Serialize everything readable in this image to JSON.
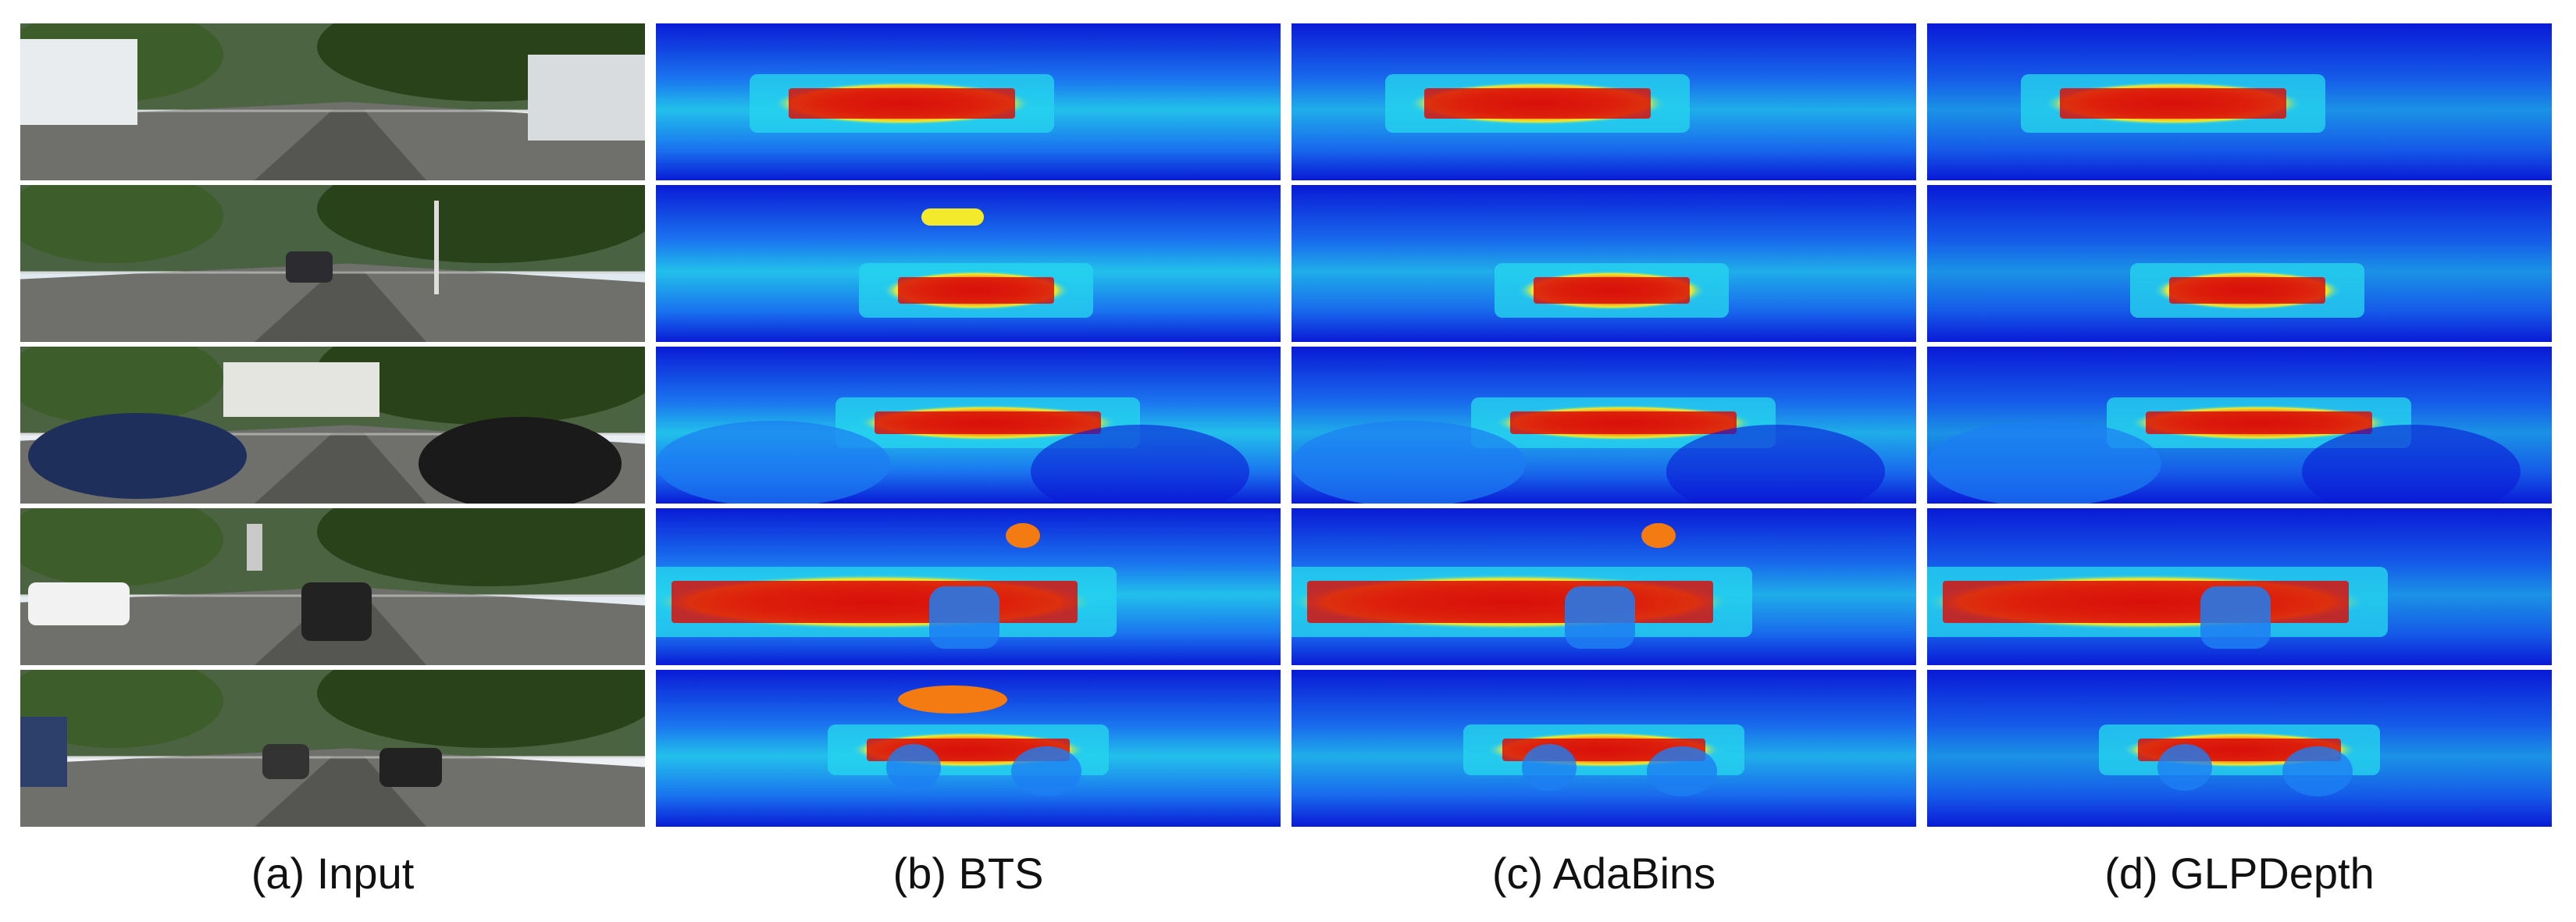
{
  "figure": {
    "captions": [
      "(a) Input",
      "(b) BTS",
      "(c) AdaBins",
      "(d) GLPDepth"
    ],
    "columns": [
      "input",
      "bts",
      "adabins",
      "glpdepth"
    ],
    "rows": 5,
    "colormap": [
      "#0a1bd6",
      "#1d7ef2",
      "#25d3ee",
      "#f2ea2b",
      "#f47a12",
      "#d80f0a"
    ]
  }
}
